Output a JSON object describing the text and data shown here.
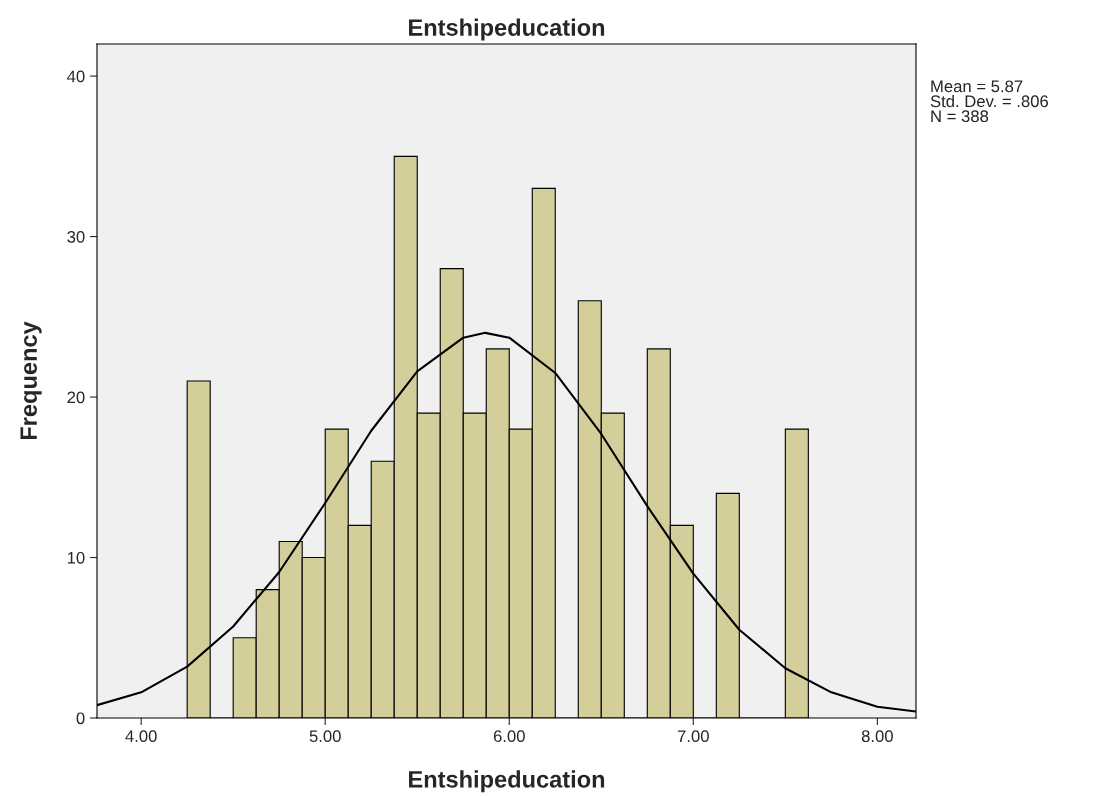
{
  "chart_data": {
    "type": "histogram",
    "title": "Entshipeducation",
    "xlabel": "Entshipeducation",
    "ylabel": "Frequency",
    "bins": [
      4.25,
      4.375,
      4.5,
      4.625,
      4.75,
      4.875,
      5.0,
      5.125,
      5.25,
      5.375,
      5.5,
      5.625,
      5.75,
      5.875,
      6.0,
      6.125,
      6.25,
      6.375,
      6.5,
      6.625,
      6.75,
      6.875,
      7.0,
      7.125,
      7.25,
      7.375,
      7.5,
      7.625
    ],
    "values": [
      21,
      0,
      5,
      8,
      11,
      10,
      18,
      12,
      16,
      35,
      19,
      28,
      19,
      23,
      18,
      33,
      0,
      26,
      19,
      0,
      23,
      12,
      0,
      14,
      0,
      0,
      18
    ],
    "color": "#d3ce9a",
    "series": [
      {
        "type": "line",
        "color": "#000000",
        "x": [
          3.76,
          4.0,
          4.25,
          4.5,
          4.75,
          5.0,
          5.25,
          5.5,
          5.75,
          5.87,
          6.0,
          6.25,
          6.5,
          6.75,
          7.0,
          7.25,
          7.5,
          7.75,
          8.0,
          8.21
        ],
        "values": [
          0.8,
          1.6,
          3.2,
          5.7,
          9.1,
          13.4,
          17.9,
          21.6,
          23.7,
          24.0,
          23.7,
          21.5,
          17.7,
          13.2,
          9.0,
          5.5,
          3.1,
          1.6,
          0.7,
          0.4
        ]
      }
    ],
    "xlim": [
      3.76,
      8.21
    ],
    "xticks": [
      {
        "value": 4,
        "label": "4.00"
      },
      {
        "value": 5,
        "label": "5.00"
      },
      {
        "value": 6,
        "label": "6.00"
      },
      {
        "value": 7,
        "label": "7.00"
      },
      {
        "value": 8,
        "label": "8.00"
      }
    ],
    "ylim": [
      0,
      42
    ],
    "yticks": [
      0,
      10,
      20,
      30,
      40
    ],
    "grid": false,
    "annotations": [
      "Mean = 5.87\nStd. Dev. = .806\nN = 388"
    ]
  }
}
